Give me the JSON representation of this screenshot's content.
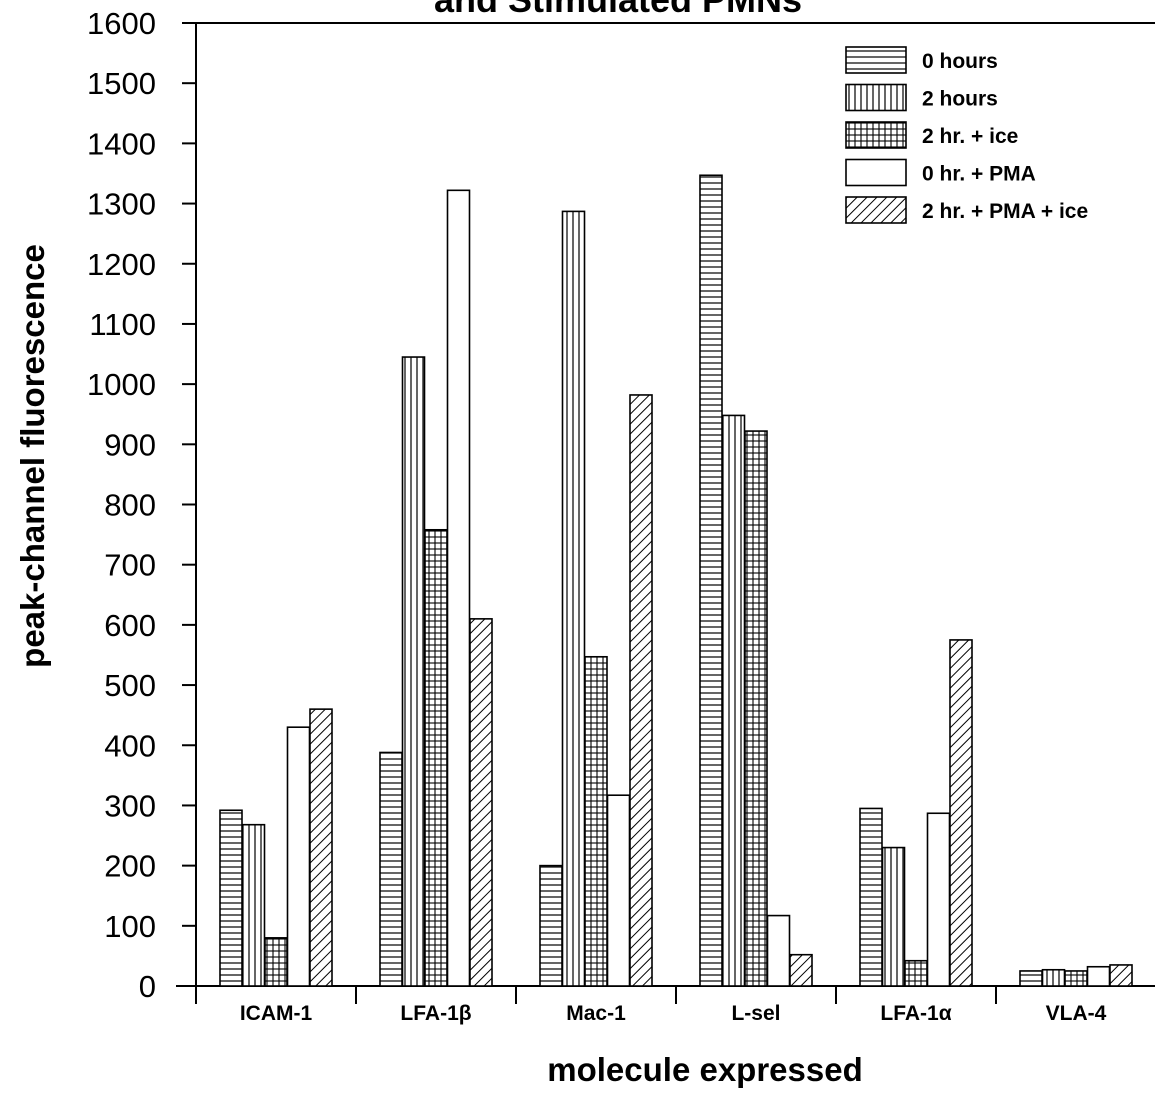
{
  "chart_data": {
    "type": "bar",
    "title": "and Stimulated PMNs",
    "xlabel": "molecule expressed",
    "ylabel": "peak-channel fluorescence",
    "categories": [
      "ICAM-1",
      "LFA-1β",
      "Mac-1",
      "L-sel",
      "LFA-1α",
      "VLA-4"
    ],
    "ylim": [
      0,
      1600
    ],
    "yticks": [
      0,
      100,
      200,
      300,
      400,
      500,
      600,
      700,
      800,
      900,
      1000,
      1100,
      1200,
      1300,
      1400,
      1500,
      1600
    ],
    "grid": false,
    "legend_position": "top-right",
    "series": [
      {
        "name": "0 hours",
        "pattern": "horizontal-lines",
        "values": [
          292,
          388,
          200,
          1347,
          295,
          25
        ]
      },
      {
        "name": "2 hours",
        "pattern": "vertical-lines",
        "values": [
          268,
          1045,
          1287,
          948,
          230,
          27
        ]
      },
      {
        "name": "2 hr. + ice",
        "pattern": "crosshatch",
        "values": [
          80,
          758,
          547,
          922,
          42,
          25
        ]
      },
      {
        "name": "0 hr. + PMA",
        "pattern": "empty",
        "values": [
          430,
          1322,
          317,
          117,
          287,
          32
        ]
      },
      {
        "name": "2 hr. + PMA + ice",
        "pattern": "diagonal-lines",
        "values": [
          460,
          610,
          982,
          52,
          575,
          35
        ]
      }
    ]
  }
}
